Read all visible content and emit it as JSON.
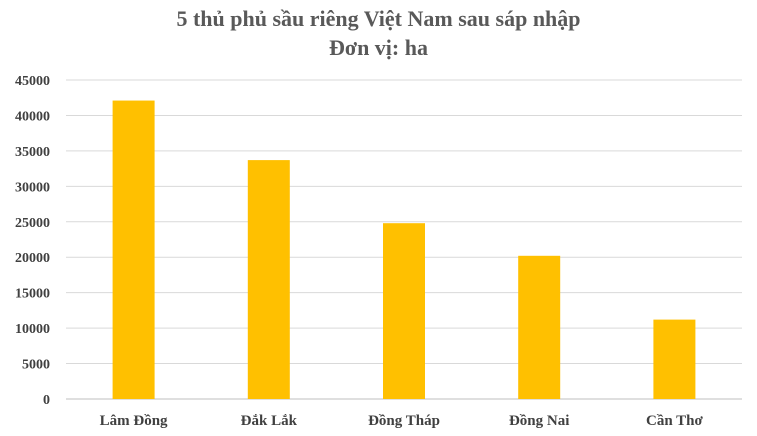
{
  "chart_data": {
    "type": "bar",
    "title": "5 thủ phủ sầu riêng Việt Nam sau sáp nhập",
    "subtitle": "Đơn vị: ha",
    "categories": [
      "Lâm Đồng",
      "Đắk Lắk",
      "Đồng Tháp",
      "Đồng Nai",
      "Cần Thơ"
    ],
    "values": [
      42100,
      33700,
      24800,
      20200,
      11200
    ],
    "ylim": [
      0,
      45000
    ],
    "yticks": [
      "0",
      "5000",
      "10000",
      "15000",
      "20000",
      "25000",
      "30000",
      "35000",
      "40000",
      "45000"
    ],
    "grid": true,
    "bar_color": "#FFC000",
    "grid_color": "#D9D9D9"
  }
}
